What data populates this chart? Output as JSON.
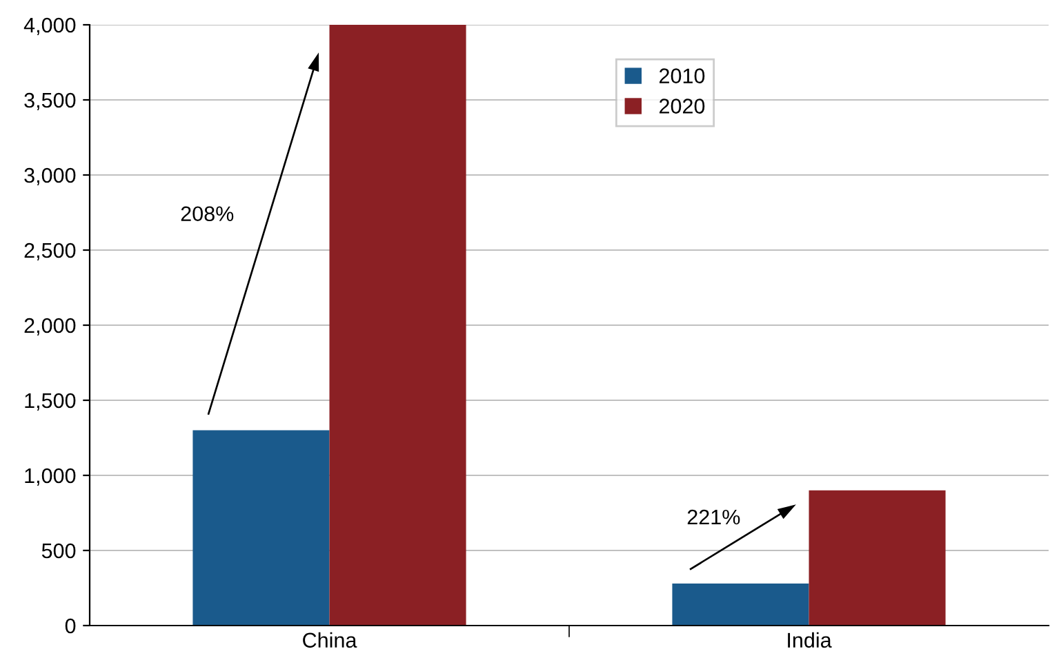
{
  "chart_data": {
    "type": "bar",
    "categories": [
      "China",
      "India"
    ],
    "series": [
      {
        "name": "2010",
        "color": "#1a5a8c",
        "values": [
          1300,
          280
        ]
      },
      {
        "name": "2020",
        "color": "#8b2024",
        "values": [
          4000,
          900
        ]
      }
    ],
    "ylim": [
      0,
      4000
    ],
    "yticks": [
      {
        "value": 0,
        "label": "0"
      },
      {
        "value": 500,
        "label": "500"
      },
      {
        "value": 1000,
        "label": "1,000"
      },
      {
        "value": 1500,
        "label": "1,500"
      },
      {
        "value": 2000,
        "label": "2,000"
      },
      {
        "value": 2500,
        "label": "2,500"
      },
      {
        "value": 3000,
        "label": "3,000"
      },
      {
        "value": 3500,
        "label": "3,500"
      },
      {
        "value": 4000,
        "label": "4,000"
      }
    ],
    "grid": "y",
    "legend": "top",
    "annotations": [
      "208%",
      "221%"
    ]
  }
}
